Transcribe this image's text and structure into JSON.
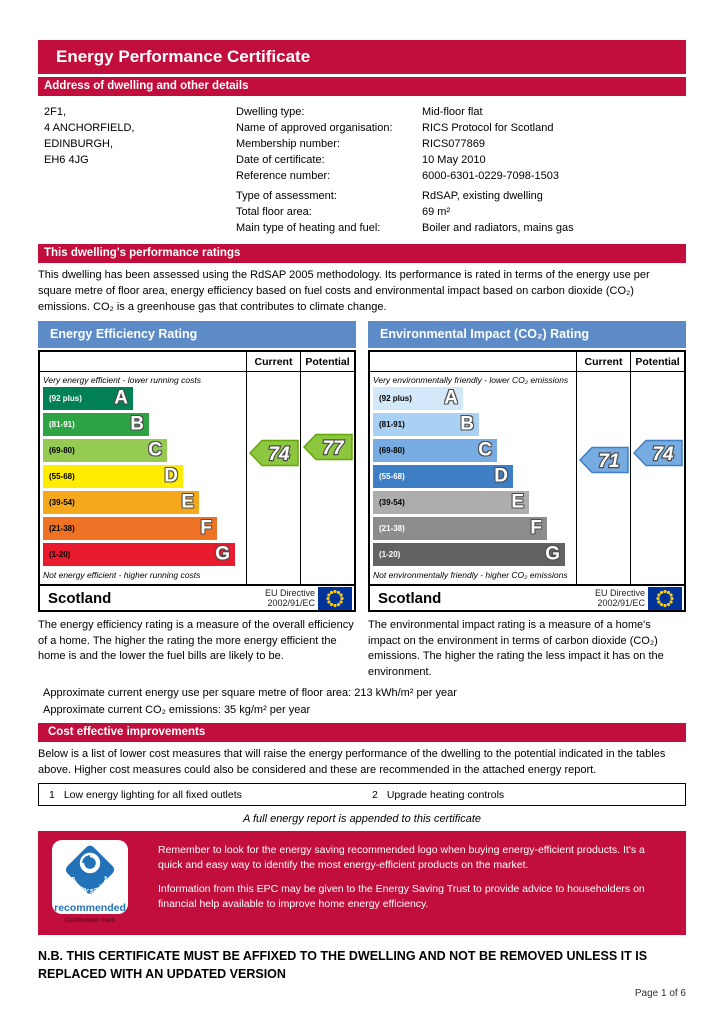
{
  "page": {
    "title": "Energy Performance Certificate",
    "section_address": "Address of dwelling and other details",
    "section_ratings": "This dwelling's performance ratings",
    "section_improvements": "Cost effective improvements",
    "report_note": "A full energy report is appended to this certificate",
    "nb_notice": "N.B. THIS CERTIFICATE MUST BE AFFIXED TO THE DWELLING AND NOT BE REMOVED UNLESS IT IS REPLACED WITH AN UPDATED VERSION",
    "page_number": "Page 1 of 6"
  },
  "address": {
    "lines": [
      "2F1,",
      "4 ANCHORFIELD,",
      "EDINBURGH,",
      "EH6 4JG"
    ]
  },
  "details": {
    "rows": [
      {
        "label": "Dwelling type:",
        "value": "Mid-floor flat"
      },
      {
        "label": "Name of approved organisation:",
        "value": "RICS Protocol for Scotland"
      },
      {
        "label": "Membership number:",
        "value": "RICS077869"
      },
      {
        "label": "Date of certificate:",
        "value": "10 May 2010"
      },
      {
        "label": "Reference number:",
        "value": "6000-6301-0229-7098-1503"
      },
      {
        "label": "Type of assessment:",
        "value": "RdSAP, existing dwelling",
        "gap": true
      },
      {
        "label": "Total floor area:",
        "value": "69 m²"
      },
      {
        "label": "Main type of heating and fuel:",
        "value": "Boiler and radiators, mains gas"
      }
    ]
  },
  "ratings_intro": "This dwelling has been assessed using the RdSAP 2005 methodology. Its performance is rated in terms of the energy use per square metre of floor area, energy efficiency based on fuel costs and environmental impact based on carbon dioxide (CO₂) emissions. CO₂ is a greenhouse gas that contributes to climate change.",
  "descriptions": {
    "energy": "The energy efficiency rating is a measure of the overall efficiency of a home. The higher the rating the more energy efficient the home is and the lower the fuel bills are likely to be.",
    "environment": "The environmental impact rating is a measure of a home's impact on the environment in terms of carbon dioxide (CO₂) emissions. The higher the rating the less impact it has on the environment."
  },
  "energy_note": "Approximate current energy use per square metre of floor area: 213 kWh/m² per year",
  "co2_note": "Approximate current CO₂ emissions: 35 kg/m² per year",
  "improvements": {
    "intro": "Below is a list of lower cost measures that will raise the energy performance of the dwelling to the potential indicated in the tables above. Higher cost measures could also be considered and these are recommended in the attached energy report.",
    "items": [
      {
        "num": "1",
        "text": "Low energy lighting for all fixed outlets"
      },
      {
        "num": "2",
        "text": "Upgrade heating controls"
      }
    ]
  },
  "energy_saving_box": {
    "paragraphs": [
      "Remember to look for the energy saving recommended logo when buying energy-efficient products. It's a quick and easy way to identify the most energy-efficient products on the market.",
      "Information from this EPC may be given to the Energy Saving Trust to provide advice to householders on financial help available to improve home energy efficiency."
    ],
    "logo": {
      "curved_text": "energy saving*",
      "recommended": "recommended",
      "certification": "Certification mark"
    }
  },
  "colors": {
    "crimson": "#C10E3C",
    "chart_header_blue": "#5C8BC7",
    "eu_flag_blue": "#003399",
    "eu_star_yellow": "#FFCC00",
    "logo_blue": "#2272B9"
  },
  "chart_data": [
    {
      "type": "epc-rating-bands",
      "title": "Energy Efficiency Rating",
      "columns": [
        "Current",
        "Potential"
      ],
      "current": 74,
      "potential": 77,
      "top_caption": "Very energy efficient - lower running costs",
      "bottom_caption": "Not energy efficient - higher running costs",
      "footer_left": "Scotland",
      "eu_directive_line1": "EU Directive",
      "eu_directive_line2": "2002/91/EC",
      "arrow_fill": "#8DC63F",
      "arrow_stroke": "#64A70B",
      "bands": [
        {
          "letter": "A",
          "range_label": "(92 plus)",
          "min": 92,
          "max": 100,
          "color": "#008054",
          "text": "#FFFFFF",
          "width_pct": 45
        },
        {
          "letter": "B",
          "range_label": "(81-91)",
          "min": 81,
          "max": 91,
          "color": "#2DA343",
          "text": "#FFFFFF",
          "width_pct": 53
        },
        {
          "letter": "C",
          "range_label": "(69-80)",
          "min": 69,
          "max": 80,
          "color": "#95CA53",
          "text": "#000000",
          "width_pct": 62
        },
        {
          "letter": "D",
          "range_label": "(55-68)",
          "min": 55,
          "max": 68,
          "color": "#FFEC00",
          "text": "#000000",
          "width_pct": 70
        },
        {
          "letter": "E",
          "range_label": "(39-54)",
          "min": 39,
          "max": 54,
          "color": "#F5A81C",
          "text": "#000000",
          "width_pct": 78
        },
        {
          "letter": "F",
          "range_label": "(21-38)",
          "min": 21,
          "max": 38,
          "color": "#ED7223",
          "text": "#000000",
          "width_pct": 87
        },
        {
          "letter": "G",
          "range_label": "(1-20)",
          "min": 1,
          "max": 20,
          "color": "#E81B2E",
          "text": "#000000",
          "width_pct": 96
        }
      ]
    },
    {
      "type": "epc-rating-bands",
      "title": "Environmental Impact (CO₂) Rating",
      "columns": [
        "Current",
        "Potential"
      ],
      "current": 71,
      "potential": 74,
      "top_caption": "Very environmentally friendly - lower CO₂ emissions",
      "bottom_caption": "Not environmentally friendly - higher CO₂ emissions",
      "footer_left": "Scotland",
      "eu_directive_line1": "EU Directive",
      "eu_directive_line2": "2002/91/EC",
      "arrow_fill": "#77ACE2",
      "arrow_stroke": "#3D7EC4",
      "bands": [
        {
          "letter": "A",
          "range_label": "(92 plus)",
          "min": 92,
          "max": 100,
          "color": "#D3E9FA",
          "text": "#000000",
          "width_pct": 45
        },
        {
          "letter": "B",
          "range_label": "(81-91)",
          "min": 81,
          "max": 91,
          "color": "#A9D1F3",
          "text": "#000000",
          "width_pct": 53
        },
        {
          "letter": "C",
          "range_label": "(69-80)",
          "min": 69,
          "max": 80,
          "color": "#77ACE2",
          "text": "#000000",
          "width_pct": 62
        },
        {
          "letter": "D",
          "range_label": "(55-68)",
          "min": 55,
          "max": 68,
          "color": "#3D7EC4",
          "text": "#FFFFFF",
          "width_pct": 70
        },
        {
          "letter": "E",
          "range_label": "(39-54)",
          "min": 39,
          "max": 54,
          "color": "#ADADAD",
          "text": "#000000",
          "width_pct": 78
        },
        {
          "letter": "F",
          "range_label": "(21-38)",
          "min": 21,
          "max": 38,
          "color": "#8C8C8C",
          "text": "#FFFFFF",
          "width_pct": 87
        },
        {
          "letter": "G",
          "range_label": "(1-20)",
          "min": 1,
          "max": 20,
          "color": "#636363",
          "text": "#FFFFFF",
          "width_pct": 96
        }
      ]
    }
  ]
}
